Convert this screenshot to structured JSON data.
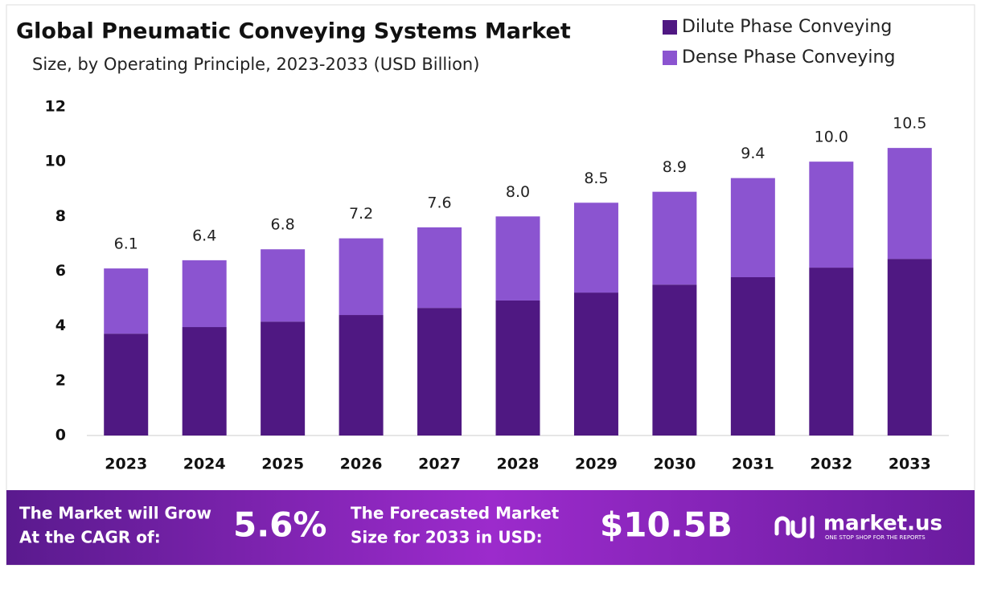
{
  "chart_data": {
    "type": "stacked-bar",
    "title": "Global Pneumatic Conveying Systems Market",
    "subtitle": "Size, by Operating Principle, 2023-2033 (USD Billion)",
    "categories": [
      "2023",
      "2024",
      "2025",
      "2026",
      "2027",
      "2028",
      "2029",
      "2030",
      "2031",
      "2032",
      "2033"
    ],
    "series": [
      {
        "name": "Dilute Phase Conveying",
        "color": "#4f1882",
        "values": [
          3.72,
          3.96,
          4.16,
          4.4,
          4.66,
          4.93,
          5.22,
          5.51,
          5.78,
          6.13,
          6.45
        ]
      },
      {
        "name": "Dense Phase Conveying",
        "color": "#8b54d0",
        "values": [
          2.38,
          2.44,
          2.64,
          2.8,
          2.94,
          3.07,
          3.28,
          3.39,
          3.62,
          3.87,
          4.05
        ]
      }
    ],
    "totals": [
      6.1,
      6.4,
      6.8,
      7.2,
      7.6,
      8.0,
      8.5,
      8.9,
      9.4,
      10.0,
      10.5
    ],
    "total_labels": [
      "6.1",
      "6.4",
      "6.8",
      "7.2",
      "7.6",
      "8.0",
      "8.5",
      "8.9",
      "9.4",
      "10.0",
      "10.5"
    ],
    "ylim": [
      0,
      12
    ],
    "yticks": [
      0,
      2,
      4,
      6,
      8,
      10,
      12
    ],
    "legend": "top-right",
    "grid": false
  },
  "footer": {
    "cagr_text": [
      "The Market will Grow",
      "At the CAGR of:"
    ],
    "cagr_value": "5.6%",
    "forecast_text": [
      "The Forecasted Market",
      "Size for 2033 in USD:"
    ],
    "forecast_value": "$10.5B",
    "brand": "market.us",
    "tagline": "ONE STOP SHOP FOR THE REPORTS"
  }
}
